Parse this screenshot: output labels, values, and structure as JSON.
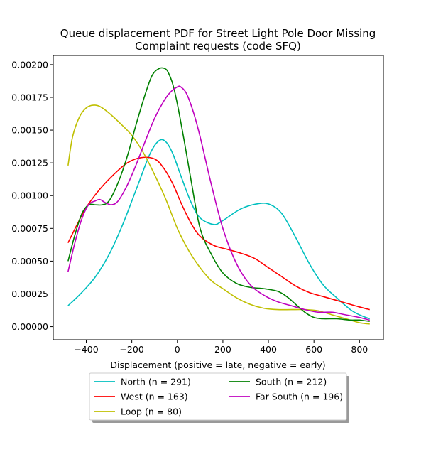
{
  "chart_data": {
    "type": "line",
    "title": "Queue displacement PDF for Street Light Pole Door Missing\nComplaint  requests (code SFQ)",
    "xlabel": "Displacement (positive = late, negative = early)",
    "ylabel": "",
    "xlim": [
      -545,
      905
    ],
    "ylim": [
      -0.0001,
      0.00207
    ],
    "xticks": [
      -400,
      -200,
      0,
      200,
      400,
      600,
      800
    ],
    "xtick_labels": [
      "−400",
      "−200",
      "0",
      "200",
      "400",
      "600",
      "800"
    ],
    "yticks": [
      0,
      0.00025,
      0.0005,
      0.00075,
      0.001,
      0.00125,
      0.0015,
      0.00175,
      0.002
    ],
    "ytick_labels": [
      "0.00000",
      "0.00025",
      "0.00050",
      "0.00075",
      "0.00100",
      "0.00125",
      "0.00150",
      "0.00175",
      "0.00200"
    ],
    "grid": false,
    "legend_position": "below",
    "series": [
      {
        "name": "North (n = 291)",
        "color": "#00bfbf",
        "x": [
          -480,
          -420,
          -360,
          -300,
          -240,
          -180,
          -120,
          -80,
          -50,
          -20,
          20,
          60,
          100,
          160,
          200,
          280,
          360,
          410,
          460,
          520,
          580,
          640,
          700,
          760,
          800,
          845
        ],
        "y": [
          0.00016,
          0.00026,
          0.00038,
          0.00055,
          0.00078,
          0.00105,
          0.00132,
          0.00142,
          0.00141,
          0.00132,
          0.00113,
          0.00095,
          0.00083,
          0.00078,
          0.00081,
          0.0009,
          0.00094,
          0.00093,
          0.00086,
          0.00068,
          0.00048,
          0.00032,
          0.00022,
          0.00013,
          9e-05,
          6e-05
        ]
      },
      {
        "name": "West (n = 163)",
        "color": "#ff0000",
        "x": [
          -480,
          -440,
          -400,
          -340,
          -280,
          -220,
          -160,
          -100,
          -60,
          -20,
          20,
          60,
          100,
          160,
          220,
          280,
          340,
          400,
          460,
          520,
          580,
          640,
          700,
          760,
          800,
          845
        ],
        "y": [
          0.00064,
          0.00078,
          0.00091,
          0.00105,
          0.00116,
          0.00125,
          0.00129,
          0.00128,
          0.00121,
          0.00109,
          0.00093,
          0.00079,
          0.00069,
          0.00062,
          0.00059,
          0.00056,
          0.00052,
          0.00045,
          0.00038,
          0.00031,
          0.00026,
          0.00023,
          0.0002,
          0.00017,
          0.00015,
          0.00013
        ]
      },
      {
        "name": "Loop (n = 80)",
        "color": "#bfbf00",
        "x": [
          -480,
          -460,
          -430,
          -400,
          -370,
          -340,
          -300,
          -250,
          -200,
          -150,
          -100,
          -50,
          0,
          50,
          100,
          150,
          200,
          260,
          320,
          380,
          440,
          500,
          560,
          620,
          680,
          740,
          800,
          845
        ],
        "y": [
          0.00123,
          0.00145,
          0.0016,
          0.00167,
          0.00169,
          0.00168,
          0.00163,
          0.00155,
          0.00146,
          0.00133,
          0.00116,
          0.00097,
          0.00075,
          0.00058,
          0.00045,
          0.00035,
          0.00029,
          0.00022,
          0.00017,
          0.00014,
          0.00013,
          0.00013,
          0.00013,
          0.00012,
          9e-05,
          6e-05,
          3e-05,
          2e-05
        ]
      },
      {
        "name": "South (n = 212)",
        "color": "#008000",
        "x": [
          -480,
          -450,
          -420,
          -390,
          -360,
          -330,
          -300,
          -260,
          -220,
          -180,
          -140,
          -110,
          -80,
          -55,
          -40,
          -20,
          0,
          30,
          60,
          100,
          150,
          200,
          260,
          320,
          380,
          440,
          480,
          520,
          560,
          600,
          640,
          700,
          760,
          800,
          845
        ],
        "y": [
          0.0005,
          0.0007,
          0.00086,
          0.00093,
          0.00093,
          0.00093,
          0.00096,
          0.0011,
          0.0013,
          0.00155,
          0.00178,
          0.00192,
          0.00197,
          0.00197,
          0.00194,
          0.00185,
          0.0017,
          0.00142,
          0.00112,
          0.00075,
          0.00055,
          0.00041,
          0.00033,
          0.0003,
          0.00029,
          0.00027,
          0.00023,
          0.00017,
          0.00011,
          7e-05,
          6e-05,
          6e-05,
          5e-05,
          5e-05,
          4e-05
        ]
      },
      {
        "name": "Far South (n = 196)",
        "color": "#bf00bf",
        "x": [
          -480,
          -450,
          -420,
          -390,
          -360,
          -340,
          -320,
          -290,
          -260,
          -220,
          -180,
          -140,
          -100,
          -60,
          -30,
          0,
          15,
          40,
          70,
          100,
          150,
          200,
          260,
          320,
          380,
          440,
          500,
          560,
          620,
          680,
          740,
          800,
          845
        ],
        "y": [
          0.00042,
          0.00064,
          0.00082,
          0.00093,
          0.00096,
          0.00097,
          0.00095,
          0.00093,
          0.00096,
          0.00108,
          0.00124,
          0.00142,
          0.00159,
          0.00172,
          0.00179,
          0.00183,
          0.00183,
          0.00178,
          0.00164,
          0.00145,
          0.00108,
          0.00075,
          0.00048,
          0.00032,
          0.00024,
          0.00019,
          0.00016,
          0.00013,
          0.00011,
          0.00011,
          9e-05,
          7e-05,
          5e-05
        ]
      }
    ]
  }
}
